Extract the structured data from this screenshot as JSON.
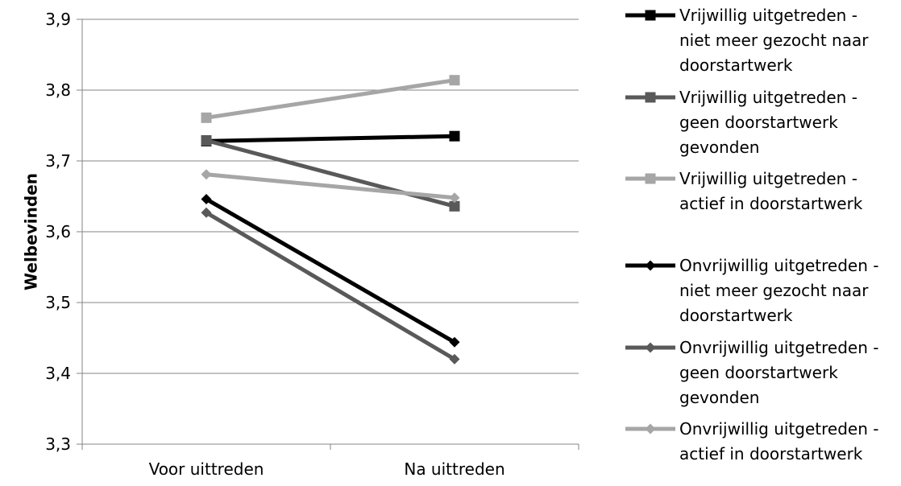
{
  "chart_data": {
    "type": "line",
    "categories": [
      "Voor uittreden",
      "Na uittreden"
    ],
    "ylabel": "Welbevinden",
    "ylim": [
      3.3,
      3.9
    ],
    "yticks": [
      "3,3",
      "3,4",
      "3,5",
      "3,6",
      "3,7",
      "3,8",
      "3,9"
    ],
    "grid": true,
    "legend_position": "right",
    "series": [
      {
        "name": "Vrijwillig uitgetreden - niet meer gezocht naar doorstartwerk",
        "legend_lines": [
          "Vrijwillig uitgetreden -",
          "niet meer gezocht naar",
          "doorstartwerk"
        ],
        "values": [
          3.728,
          3.735
        ],
        "color": "#000000",
        "marker": "square"
      },
      {
        "name": "Vrijwillig uitgetreden - geen doorstartwerk gevonden",
        "legend_lines": [
          "Vrijwillig uitgetreden -",
          "geen doorstartwerk",
          "gevonden"
        ],
        "values": [
          3.729,
          3.636
        ],
        "color": "#595959",
        "marker": "square"
      },
      {
        "name": "Vrijwillig uitgetreden - actief in doorstartwerk",
        "legend_lines": [
          "Vrijwillig uitgetreden -",
          "actief in doorstartwerk"
        ],
        "values": [
          3.761,
          3.814
        ],
        "color": "#a6a6a6",
        "marker": "square"
      },
      {
        "name": "Onvrijwillig uitgetreden - niet meer gezocht naar doorstartwerk",
        "legend_lines": [
          "Onvrijwillig uitgetreden -",
          "niet meer gezocht naar",
          "doorstartwerk"
        ],
        "values": [
          3.646,
          3.444
        ],
        "color": "#000000",
        "marker": "diamond"
      },
      {
        "name": "Onvrijwillig uitgetreden - geen doorstartwerk gevonden",
        "legend_lines": [
          "Onvrijwillig uitgetreden -",
          "geen doorstartwerk",
          "gevonden"
        ],
        "values": [
          3.627,
          3.42
        ],
        "color": "#595959",
        "marker": "diamond"
      },
      {
        "name": "Onvrijwillig uitgetreden - actief in doorstartwerk",
        "legend_lines": [
          "Onvrijwillig uitgetreden -",
          "actief in doorstartwerk"
        ],
        "values": [
          3.681,
          3.648
        ],
        "color": "#a6a6a6",
        "marker": "diamond"
      }
    ]
  }
}
